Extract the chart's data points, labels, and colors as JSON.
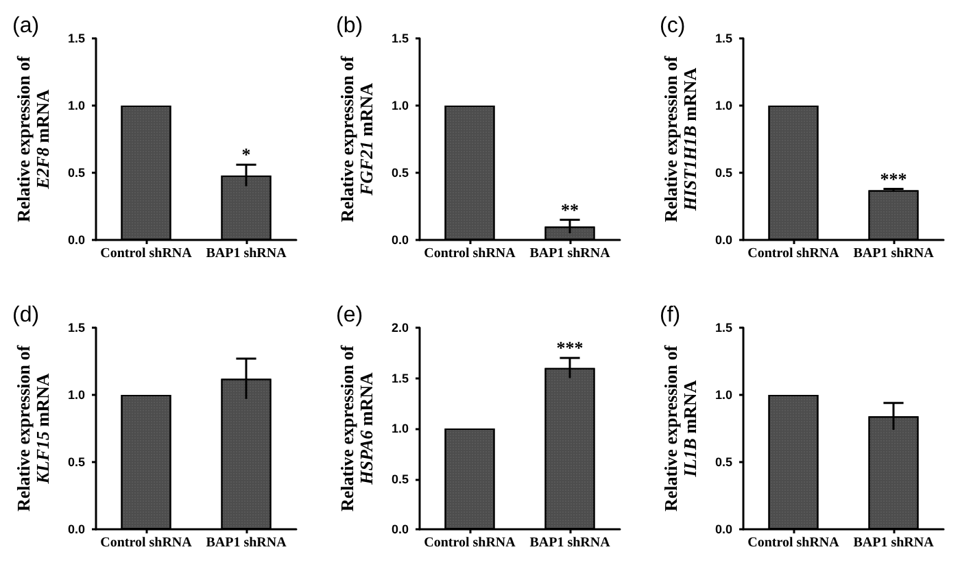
{
  "chart_data": [
    {
      "type": "bar",
      "title": "(a)",
      "ylabel": "Relative expression of\nE2F8 mRNA",
      "categories": [
        "Control shRNA",
        "BAP1 shRNA"
      ],
      "values": [
        1.0,
        0.48
      ],
      "errors": [
        null,
        0.08
      ],
      "color": "#4d4d4d",
      "ylim": [
        0,
        1.5
      ],
      "yticks": [
        {
          "value": 0,
          "label": "0.0"
        },
        {
          "value": 0.5,
          "label": "0.5"
        },
        {
          "value": 1,
          "label": "1.0"
        },
        {
          "value": 1.5,
          "label": "1.5"
        }
      ],
      "annotations": [
        {
          "text": "*",
          "x": "BAP1 shRNA",
          "y": 0.56
        }
      ]
    },
    {
      "type": "bar",
      "title": "(b)",
      "ylabel": "Relative expression of\nFGF21 mRNA",
      "categories": [
        "Control shRNA",
        "BAP1 shRNA"
      ],
      "values": [
        1.0,
        0.1
      ],
      "errors": [
        null,
        0.05
      ],
      "color": "#4d4d4d",
      "ylim": [
        0,
        1.5
      ],
      "yticks": [
        {
          "value": 0,
          "label": "0.0"
        },
        {
          "value": 0.5,
          "label": "0.5"
        },
        {
          "value": 1,
          "label": "1.0"
        },
        {
          "value": 1.5,
          "label": "1.5"
        }
      ],
      "annotations": [
        {
          "text": "**",
          "x": "BAP1 shRNA",
          "y": 0.15
        }
      ]
    },
    {
      "type": "bar",
      "title": "(c)",
      "ylabel": "Relative expression of\nHIST1H1B mRNA",
      "categories": [
        "Control shRNA",
        "BAP1 shRNA"
      ],
      "values": [
        1.0,
        0.37
      ],
      "errors": [
        null,
        0.01
      ],
      "color": "#4d4d4d",
      "ylim": [
        0,
        1.5
      ],
      "yticks": [
        {
          "value": 0,
          "label": "0.0"
        },
        {
          "value": 0.5,
          "label": "0.5"
        },
        {
          "value": 1,
          "label": "1.0"
        },
        {
          "value": 1.5,
          "label": "1.5"
        }
      ],
      "annotations": [
        {
          "text": "***",
          "x": "BAP1 shRNA",
          "y": 0.38
        }
      ]
    },
    {
      "type": "bar",
      "title": "(d)",
      "ylabel": "Relative expression of\nKLF15 mRNA",
      "categories": [
        "Control shRNA",
        "BAP1 shRNA"
      ],
      "values": [
        1.0,
        1.12
      ],
      "errors": [
        null,
        0.15
      ],
      "color": "#4d4d4d",
      "ylim": [
        0,
        1.5
      ],
      "yticks": [
        {
          "value": 0,
          "label": "0.0"
        },
        {
          "value": 0.5,
          "label": "0.5"
        },
        {
          "value": 1,
          "label": "1.0"
        },
        {
          "value": 1.5,
          "label": "1.5"
        }
      ]
    },
    {
      "type": "bar",
      "title": "(e)",
      "ylabel": "Relative expression of\nHSPA6 mRNA",
      "categories": [
        "Control shRNA",
        "BAP1 shRNA"
      ],
      "values": [
        1.0,
        1.6
      ],
      "errors": [
        null,
        0.1
      ],
      "color": "#4d4d4d",
      "ylim": [
        0,
        2
      ],
      "yticks": [
        {
          "value": 0,
          "label": "0.0"
        },
        {
          "value": 0.5,
          "label": "0.5"
        },
        {
          "value": 1,
          "label": "1.0"
        },
        {
          "value": 1.5,
          "label": "1.5"
        },
        {
          "value": 2,
          "label": "2.0"
        }
      ],
      "annotations": [
        {
          "text": "***",
          "x": "BAP1 shRNA",
          "y": 1.7
        }
      ]
    },
    {
      "type": "bar",
      "title": "(f)",
      "ylabel": "Relative expression of\nIL1B mRNA",
      "categories": [
        "Control shRNA",
        "BAP1 shRNA"
      ],
      "values": [
        1.0,
        0.84
      ],
      "errors": [
        null,
        0.1
      ],
      "color": "#4d4d4d",
      "ylim": [
        0,
        1.5
      ],
      "yticks": [
        {
          "value": 0,
          "label": "0.0"
        },
        {
          "value": 0.5,
          "label": "0.5"
        },
        {
          "value": 1,
          "label": "1.0"
        },
        {
          "value": 1.5,
          "label": "1.5"
        }
      ]
    }
  ]
}
